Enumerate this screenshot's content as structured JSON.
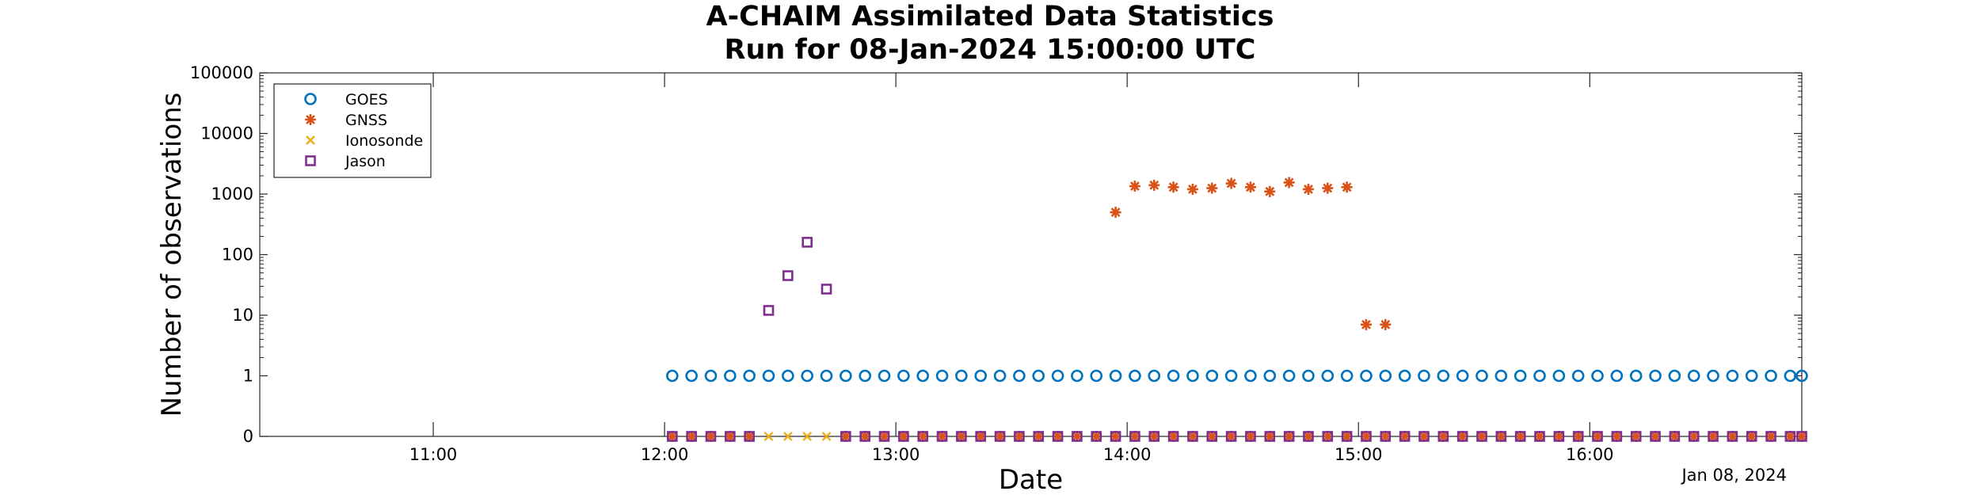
{
  "chart_data": {
    "type": "scatter",
    "title": "A-CHAIM Assimilated Data Statistics",
    "subtitle": "Run for 08-Jan-2024 15:00:00 UTC",
    "xlabel": "Date",
    "ylabel": "Number of observations",
    "x_range": [
      "2024-01-08 10:15",
      "2024-01-08 16:55"
    ],
    "y_scale": "log",
    "y_range": [
      0,
      100000
    ],
    "y_ticks": [
      "0",
      "1",
      "10",
      "100",
      "1000",
      "10000",
      "100000"
    ],
    "x_ticks": [
      "11:00",
      "12:00",
      "13:00",
      "14:00",
      "15:00",
      "16:00"
    ],
    "date_label": "Jan 08, 2024",
    "grid": false,
    "legend_position": "top-left",
    "series": [
      {
        "name": "GOES",
        "marker": "circle",
        "color": "#0072BD",
        "points": [
          [
            "12:02",
            1
          ],
          [
            "12:07",
            1
          ],
          [
            "12:12",
            1
          ],
          [
            "12:17",
            1
          ],
          [
            "12:22",
            1
          ],
          [
            "12:27",
            1
          ],
          [
            "12:32",
            1
          ],
          [
            "12:37",
            1
          ],
          [
            "12:42",
            1
          ],
          [
            "12:47",
            1
          ],
          [
            "12:52",
            1
          ],
          [
            "12:57",
            1
          ],
          [
            "13:02",
            1
          ],
          [
            "13:07",
            1
          ],
          [
            "13:12",
            1
          ],
          [
            "13:17",
            1
          ],
          [
            "13:22",
            1
          ],
          [
            "13:27",
            1
          ],
          [
            "13:32",
            1
          ],
          [
            "13:37",
            1
          ],
          [
            "13:42",
            1
          ],
          [
            "13:47",
            1
          ],
          [
            "13:52",
            1
          ],
          [
            "13:57",
            1
          ],
          [
            "14:02",
            1
          ],
          [
            "14:07",
            1
          ],
          [
            "14:12",
            1
          ],
          [
            "14:17",
            1
          ],
          [
            "14:22",
            1
          ],
          [
            "14:27",
            1
          ],
          [
            "14:32",
            1
          ],
          [
            "14:37",
            1
          ],
          [
            "14:42",
            1
          ],
          [
            "14:47",
            1
          ],
          [
            "14:52",
            1
          ],
          [
            "14:57",
            1
          ],
          [
            "15:02",
            1
          ],
          [
            "15:07",
            1
          ],
          [
            "15:12",
            1
          ],
          [
            "15:17",
            1
          ],
          [
            "15:22",
            1
          ],
          [
            "15:27",
            1
          ],
          [
            "15:32",
            1
          ],
          [
            "15:37",
            1
          ],
          [
            "15:42",
            1
          ],
          [
            "15:47",
            1
          ],
          [
            "15:52",
            1
          ],
          [
            "15:57",
            1
          ],
          [
            "16:02",
            1
          ],
          [
            "16:07",
            1
          ],
          [
            "16:12",
            1
          ],
          [
            "16:17",
            1
          ],
          [
            "16:22",
            1
          ],
          [
            "16:27",
            1
          ],
          [
            "16:32",
            1
          ],
          [
            "16:37",
            1
          ],
          [
            "16:42",
            1
          ],
          [
            "16:47",
            1
          ],
          [
            "16:52",
            1
          ],
          [
            "16:55",
            1
          ]
        ]
      },
      {
        "name": "GNSS",
        "marker": "asterisk",
        "color": "#D95319",
        "points": [
          [
            "13:57",
            500
          ],
          [
            "14:02",
            1350
          ],
          [
            "14:07",
            1400
          ],
          [
            "14:12",
            1300
          ],
          [
            "14:17",
            1200
          ],
          [
            "14:22",
            1250
          ],
          [
            "14:27",
            1500
          ],
          [
            "14:32",
            1300
          ],
          [
            "14:37",
            1100
          ],
          [
            "14:42",
            1550
          ],
          [
            "14:47",
            1200
          ],
          [
            "14:52",
            1250
          ],
          [
            "14:57",
            1300
          ],
          [
            "15:02",
            7
          ],
          [
            "15:07",
            7
          ],
          [
            "12:02",
            0
          ],
          [
            "12:07",
            0
          ],
          [
            "12:12",
            0
          ],
          [
            "12:17",
            0
          ],
          [
            "12:22",
            0
          ],
          [
            "12:47",
            0
          ],
          [
            "12:52",
            0
          ],
          [
            "12:57",
            0
          ],
          [
            "13:02",
            0
          ],
          [
            "13:07",
            0
          ],
          [
            "13:12",
            0
          ],
          [
            "13:17",
            0
          ],
          [
            "13:22",
            0
          ],
          [
            "13:27",
            0
          ],
          [
            "13:32",
            0
          ],
          [
            "13:37",
            0
          ],
          [
            "13:42",
            0
          ],
          [
            "13:47",
            0
          ],
          [
            "13:52",
            0
          ],
          [
            "13:57",
            0
          ],
          [
            "14:02",
            0
          ],
          [
            "14:07",
            0
          ],
          [
            "14:12",
            0
          ],
          [
            "14:17",
            0
          ],
          [
            "14:22",
            0
          ],
          [
            "14:27",
            0
          ],
          [
            "14:32",
            0
          ],
          [
            "14:37",
            0
          ],
          [
            "14:42",
            0
          ],
          [
            "14:47",
            0
          ],
          [
            "14:52",
            0
          ],
          [
            "14:57",
            0
          ],
          [
            "15:02",
            0
          ],
          [
            "15:07",
            0
          ],
          [
            "15:12",
            0
          ],
          [
            "15:17",
            0
          ],
          [
            "15:22",
            0
          ],
          [
            "15:27",
            0
          ],
          [
            "15:32",
            0
          ],
          [
            "15:37",
            0
          ],
          [
            "15:42",
            0
          ],
          [
            "15:47",
            0
          ],
          [
            "15:52",
            0
          ],
          [
            "15:57",
            0
          ],
          [
            "16:02",
            0
          ],
          [
            "16:07",
            0
          ],
          [
            "16:12",
            0
          ],
          [
            "16:17",
            0
          ],
          [
            "16:22",
            0
          ],
          [
            "16:27",
            0
          ],
          [
            "16:32",
            0
          ],
          [
            "16:37",
            0
          ],
          [
            "16:42",
            0
          ],
          [
            "16:47",
            0
          ],
          [
            "16:52",
            0
          ],
          [
            "16:55",
            0
          ]
        ]
      },
      {
        "name": "Ionosonde",
        "marker": "x",
        "color": "#EDB120",
        "points": [
          [
            "12:27",
            0
          ],
          [
            "12:32",
            0
          ],
          [
            "12:37",
            0
          ],
          [
            "12:42",
            0
          ]
        ]
      },
      {
        "name": "Jason",
        "marker": "square",
        "color": "#7E2F8E",
        "points": [
          [
            "12:27",
            12
          ],
          [
            "12:32",
            45
          ],
          [
            "12:37",
            160
          ],
          [
            "12:42",
            27
          ],
          [
            "12:02",
            0
          ],
          [
            "12:07",
            0
          ],
          [
            "12:12",
            0
          ],
          [
            "12:17",
            0
          ],
          [
            "12:22",
            0
          ],
          [
            "12:47",
            0
          ],
          [
            "12:52",
            0
          ],
          [
            "12:57",
            0
          ],
          [
            "13:02",
            0
          ],
          [
            "13:07",
            0
          ],
          [
            "13:12",
            0
          ],
          [
            "13:17",
            0
          ],
          [
            "13:22",
            0
          ],
          [
            "13:27",
            0
          ],
          [
            "13:32",
            0
          ],
          [
            "13:37",
            0
          ],
          [
            "13:42",
            0
          ],
          [
            "13:47",
            0
          ],
          [
            "13:52",
            0
          ],
          [
            "13:57",
            0
          ],
          [
            "14:02",
            0
          ],
          [
            "14:07",
            0
          ],
          [
            "14:12",
            0
          ],
          [
            "14:17",
            0
          ],
          [
            "14:22",
            0
          ],
          [
            "14:27",
            0
          ],
          [
            "14:32",
            0
          ],
          [
            "14:37",
            0
          ],
          [
            "14:42",
            0
          ],
          [
            "14:47",
            0
          ],
          [
            "14:52",
            0
          ],
          [
            "14:57",
            0
          ],
          [
            "15:02",
            0
          ],
          [
            "15:07",
            0
          ],
          [
            "15:12",
            0
          ],
          [
            "15:17",
            0
          ],
          [
            "15:22",
            0
          ],
          [
            "15:27",
            0
          ],
          [
            "15:32",
            0
          ],
          [
            "15:37",
            0
          ],
          [
            "15:42",
            0
          ],
          [
            "15:47",
            0
          ],
          [
            "15:52",
            0
          ],
          [
            "15:57",
            0
          ],
          [
            "16:02",
            0
          ],
          [
            "16:07",
            0
          ],
          [
            "16:12",
            0
          ],
          [
            "16:17",
            0
          ],
          [
            "16:22",
            0
          ],
          [
            "16:27",
            0
          ],
          [
            "16:32",
            0
          ],
          [
            "16:37",
            0
          ],
          [
            "16:42",
            0
          ],
          [
            "16:47",
            0
          ],
          [
            "16:52",
            0
          ],
          [
            "16:55",
            0
          ]
        ]
      }
    ]
  }
}
